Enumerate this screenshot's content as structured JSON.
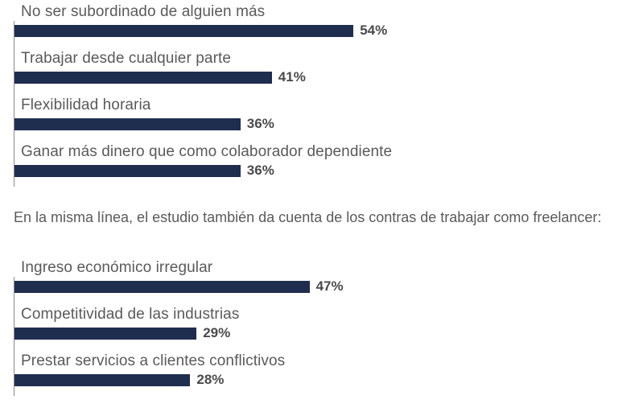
{
  "intro_text": "En la misma línea, el estudio también da cuenta de los contras de trabajar como freelancer:",
  "colors": {
    "bar": "#1f2d4f",
    "axis": "#8a8a8a",
    "text": "#5a5a5a"
  },
  "chart_data": [
    {
      "type": "bar",
      "orientation": "horizontal",
      "categories": [
        "No ser subordinado de alguien más",
        "Trabajar desde cualquier parte",
        "Flexibilidad horaria",
        "Ganar más dinero que como colaborador dependiente"
      ],
      "values": [
        54,
        41,
        36,
        36
      ],
      "value_labels": [
        "54%",
        "41%",
        "36%",
        "36%"
      ],
      "unit": "%",
      "xlim": [
        0,
        100
      ],
      "grid": false
    },
    {
      "type": "bar",
      "orientation": "horizontal",
      "categories": [
        "Ingreso económico irregular",
        "Competitividad de las industrias",
        "Prestar servicios a clientes conflictivos"
      ],
      "values": [
        47,
        29,
        28
      ],
      "value_labels": [
        "47%",
        "29%",
        "28%"
      ],
      "unit": "%",
      "xlim": [
        0,
        100
      ],
      "grid": false
    }
  ]
}
